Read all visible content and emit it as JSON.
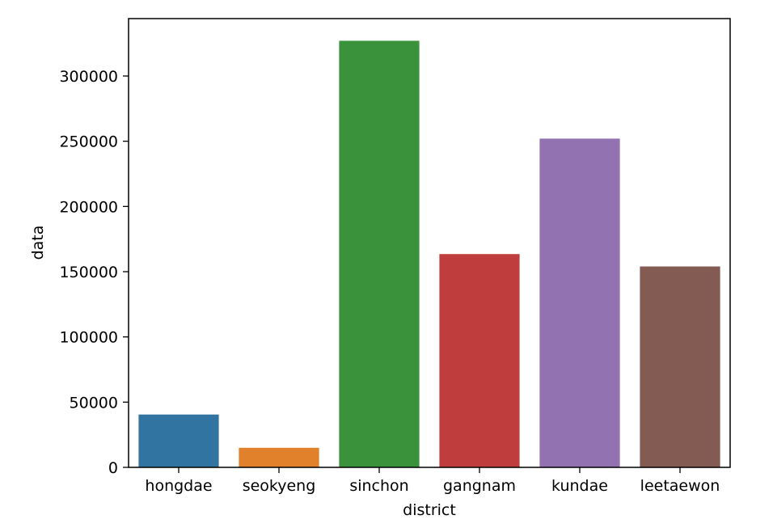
{
  "chart_data": {
    "type": "bar",
    "title": "",
    "xlabel": "district",
    "ylabel": "data",
    "categories": [
      "hongdae",
      "seokyeng",
      "sinchon",
      "gangnam",
      "kundae",
      "leetaewon"
    ],
    "values": [
      40500,
      15000,
      327000,
      163500,
      252000,
      154000
    ],
    "colors": [
      "#3274a1",
      "#e1812c",
      "#3a923a",
      "#c03d3e",
      "#9372b2",
      "#845b53"
    ],
    "ylim": [
      0,
      344000
    ],
    "yticks": [
      0,
      50000,
      100000,
      150000,
      200000,
      250000,
      300000
    ],
    "ytick_labels": [
      "0",
      "50000",
      "100000",
      "150000",
      "200000",
      "250000",
      "300000"
    ],
    "grid": false,
    "legend": false
  }
}
